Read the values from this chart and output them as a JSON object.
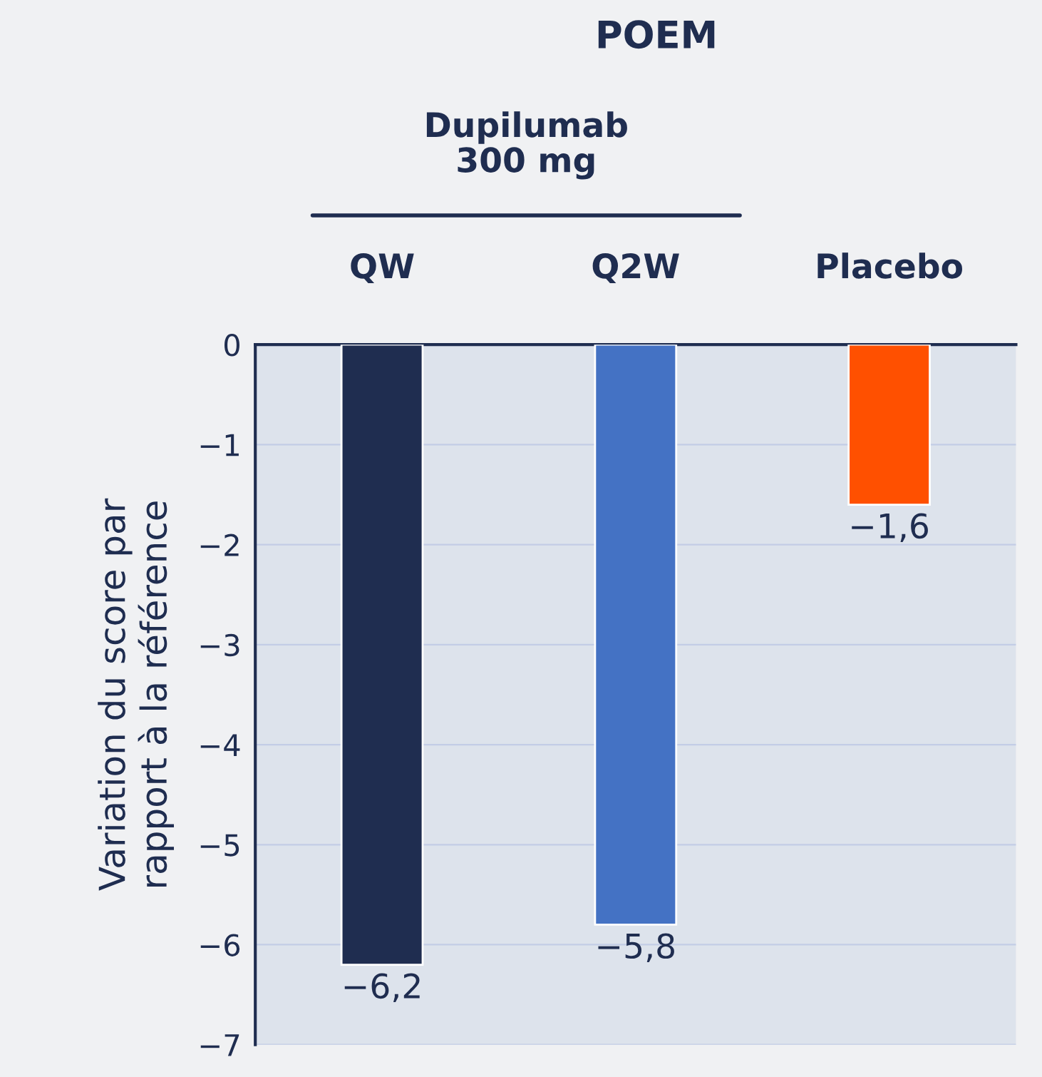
{
  "chart_data": {
    "type": "bar",
    "title": "POEM",
    "categories": [
      "QW",
      "Q2W",
      "Placebo"
    ],
    "values": [
      -6.2,
      -5.8,
      -1.6
    ],
    "colors": [
      "#1f2d50",
      "#4472c4",
      "#ff5000"
    ],
    "value_labels": [
      "−6,2",
      "−5,8",
      "−1,6"
    ],
    "ylabel": "Variation du score par\nrapport à la référence",
    "annotations": [
      "Dupilumab\n300 mg"
    ],
    "ylim": [
      -7,
      0
    ],
    "yticks": [
      {
        "value": 0,
        "label": "0"
      },
      {
        "value": -1,
        "label": "−1"
      },
      {
        "value": -2,
        "label": "−2"
      },
      {
        "value": -3,
        "label": "−3"
      },
      {
        "value": -4,
        "label": "−4"
      },
      {
        "value": -5,
        "label": "−5"
      },
      {
        "value": -6,
        "label": "−6"
      },
      {
        "value": -7,
        "label": "−7"
      }
    ],
    "grid": "y",
    "legend": false
  }
}
